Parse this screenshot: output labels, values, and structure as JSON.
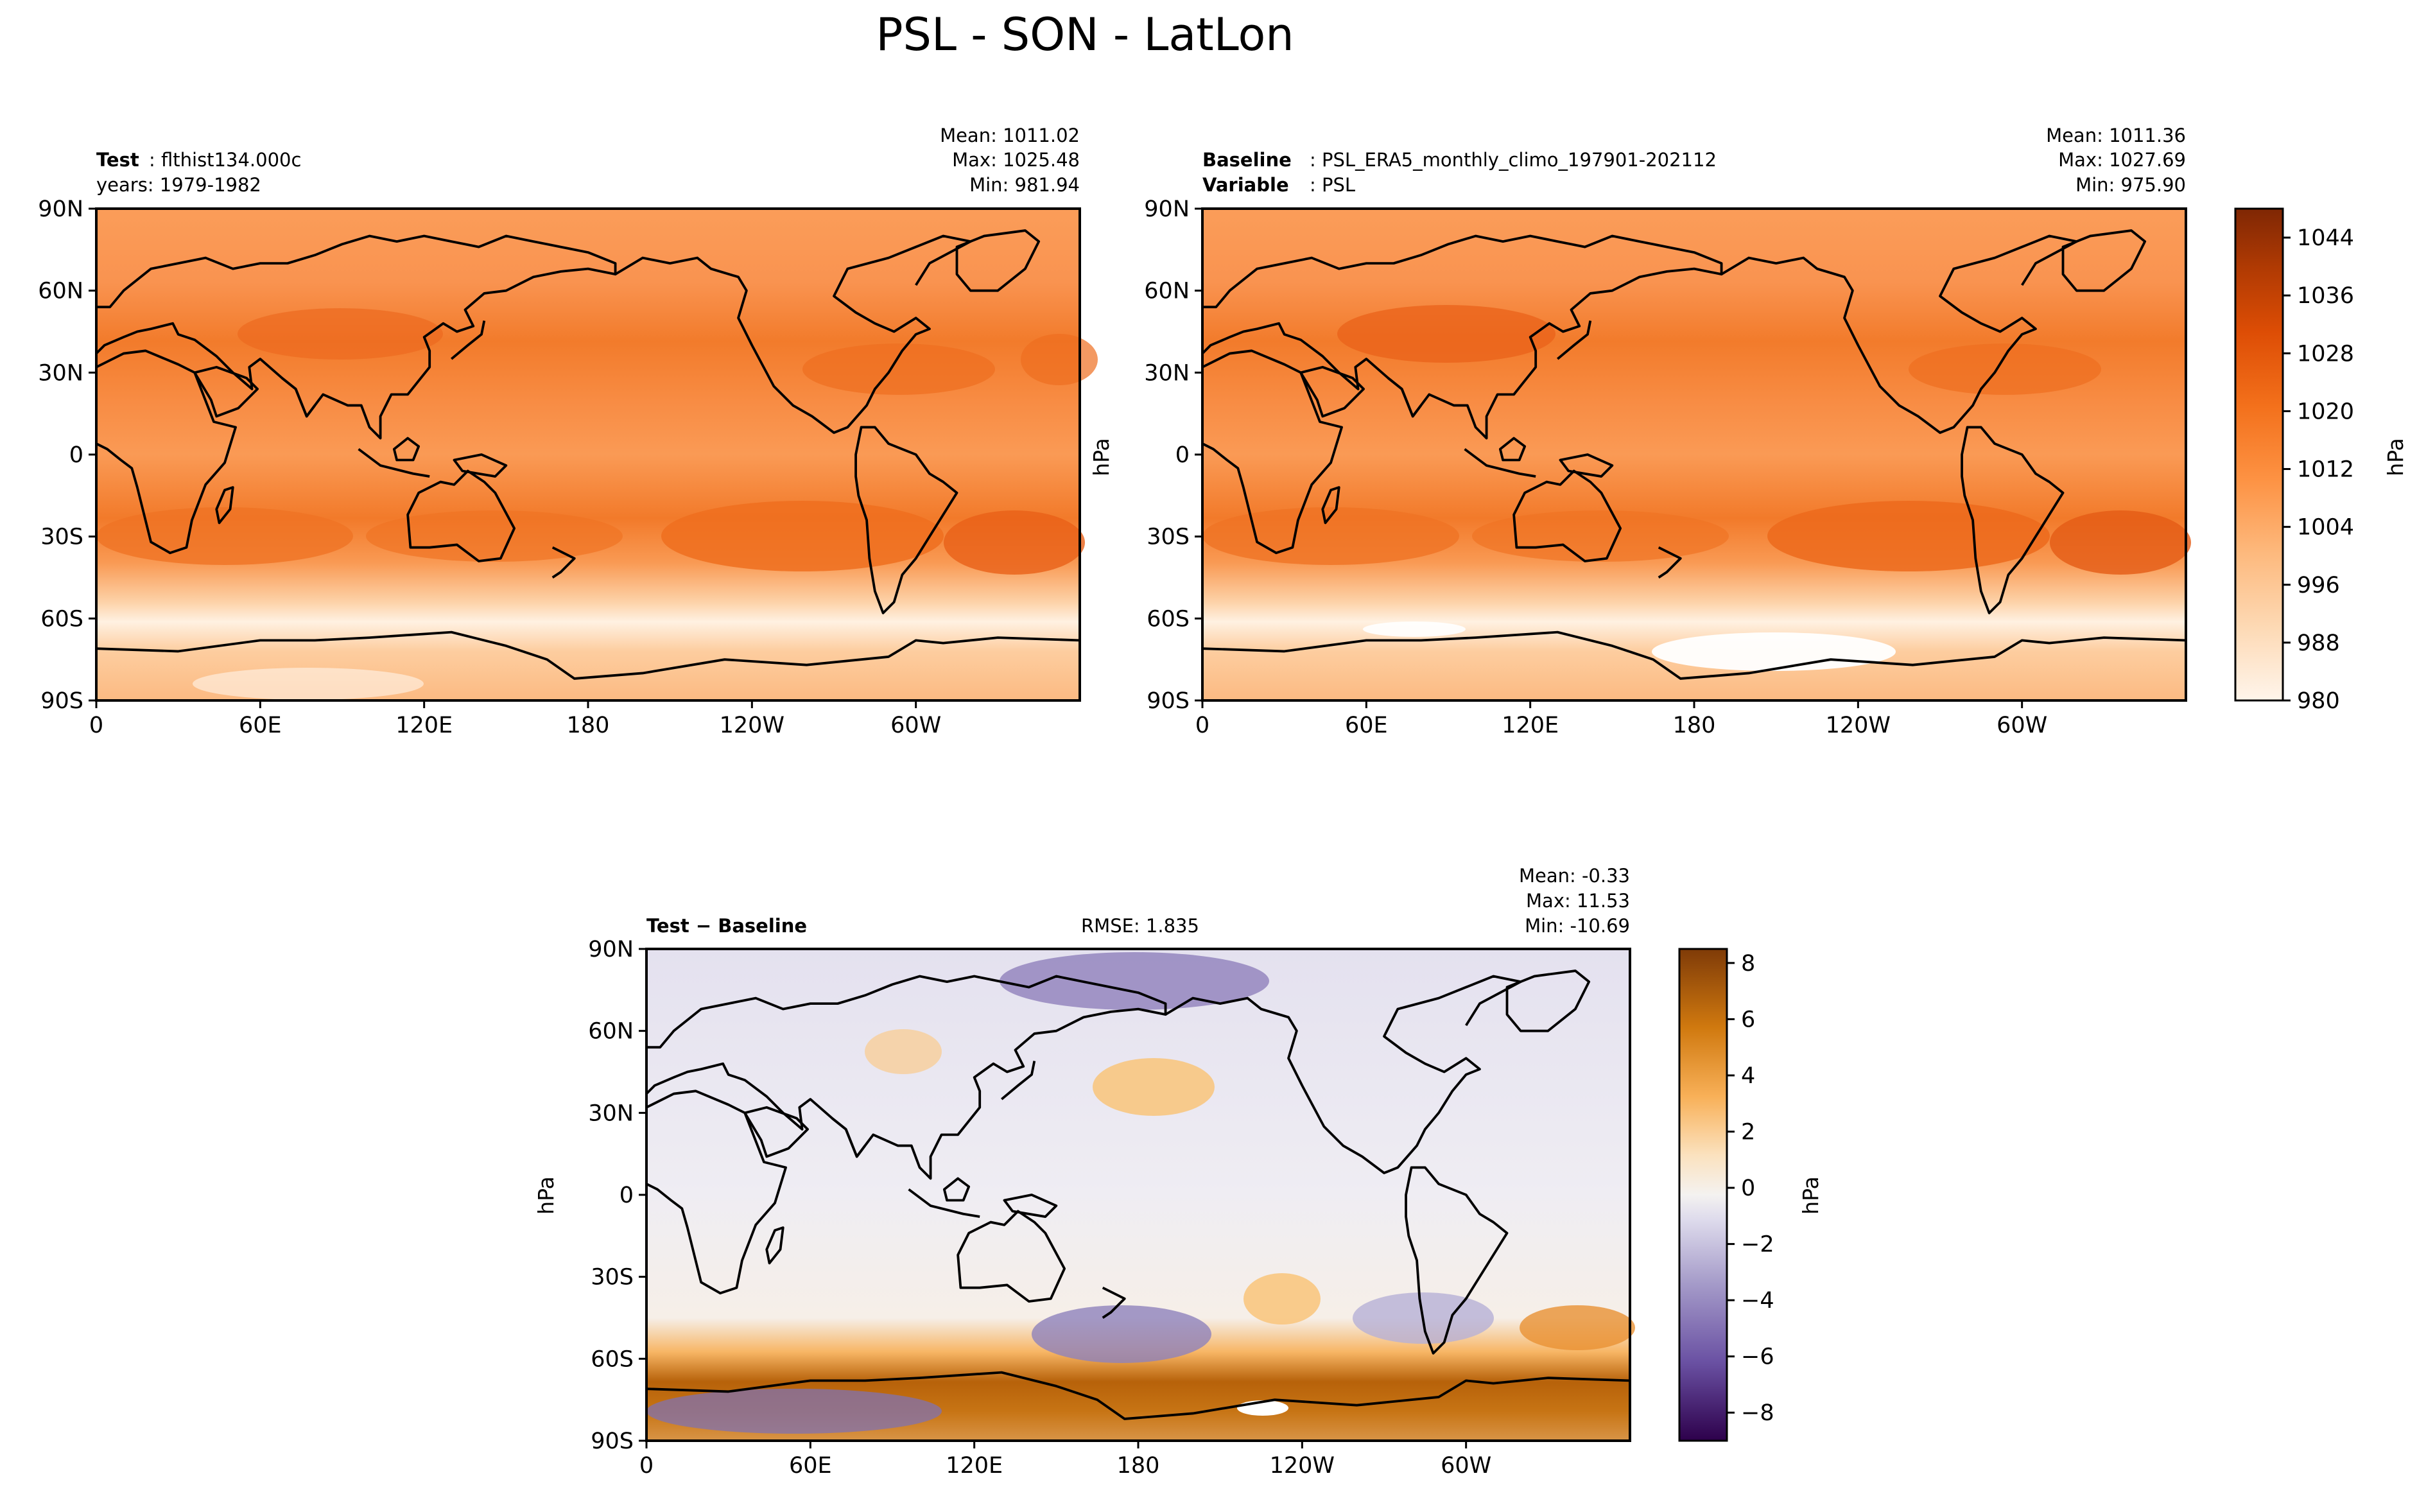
{
  "figure": {
    "title": "PSL - SON - LatLon"
  },
  "chart_data": [
    {
      "type": "heatmap",
      "panel": "test",
      "title_bold": "Test",
      "title_rest": ": flthist134.000c",
      "subtitle": "years: 1979-1982",
      "stats": {
        "mean": "Mean: 1011.02",
        "max": "Max: 1025.48",
        "min": "Min: 981.94"
      },
      "xticks": [
        "0",
        "60E",
        "120E",
        "180",
        "120W",
        "60W"
      ],
      "xtick_values": [
        0,
        60,
        120,
        180,
        240,
        300
      ],
      "yticks": [
        "90N",
        "60N",
        "30N",
        "0",
        "30S",
        "60S",
        "90S"
      ],
      "ytick_values": [
        90,
        60,
        30,
        0,
        -30,
        -60,
        -90
      ],
      "xlim": [
        0,
        360
      ],
      "ylim": [
        -90,
        90
      ],
      "units": "hPa",
      "colormap": "Oranges",
      "range": [
        980,
        1048
      ]
    },
    {
      "type": "heatmap",
      "panel": "baseline",
      "title_bold": "Baseline",
      "title_rest": ": PSL_ERA5_monthly_climo_197901-202112",
      "subtitle_bold": "Variable",
      "subtitle_rest": ": PSL",
      "stats": {
        "mean": "Mean: 1011.36",
        "max": "Max: 1027.69",
        "min": "Min: 975.90"
      },
      "xticks": [
        "0",
        "60E",
        "120E",
        "180",
        "120W",
        "60W"
      ],
      "xtick_values": [
        0,
        60,
        120,
        180,
        240,
        300
      ],
      "yticks": [
        "90N",
        "60N",
        "30N",
        "0",
        "30S",
        "60S",
        "90S"
      ],
      "ytick_values": [
        90,
        60,
        30,
        0,
        -30,
        -60,
        -90
      ],
      "xlim": [
        0,
        360
      ],
      "ylim": [
        -90,
        90
      ],
      "ylabel": "hPa",
      "units": "hPa",
      "colormap": "Oranges",
      "range": [
        980,
        1048
      ],
      "colorbar": {
        "label": "hPa",
        "ticks": [
          "980",
          "988",
          "996",
          "1004",
          "1012",
          "1020",
          "1028",
          "1036",
          "1044"
        ],
        "tick_values": [
          980,
          988,
          996,
          1004,
          1012,
          1020,
          1028,
          1036,
          1044
        ],
        "range": [
          980,
          1048
        ]
      }
    },
    {
      "type": "heatmap",
      "panel": "difference",
      "title_bold": "Test − Baseline",
      "rmse": "RMSE: 1.835",
      "stats": {
        "mean": "Mean: -0.33",
        "max": "Max: 11.53",
        "min": "Min: -10.69"
      },
      "xticks": [
        "0",
        "60E",
        "120E",
        "180",
        "120W",
        "60W"
      ],
      "xtick_values": [
        0,
        60,
        120,
        180,
        240,
        300
      ],
      "yticks": [
        "90N",
        "60N",
        "30N",
        "0",
        "30S",
        "60S",
        "90S"
      ],
      "ytick_values": [
        90,
        60,
        30,
        0,
        -30,
        -60,
        -90
      ],
      "xlim": [
        0,
        360
      ],
      "ylim": [
        -90,
        90
      ],
      "ylabel": "hPa",
      "units": "hPa",
      "colormap": "PuOr_r",
      "range": [
        -9,
        8.5
      ],
      "colorbar": {
        "label": "hPa",
        "ticks": [
          "−8",
          "−6",
          "−4",
          "−2",
          "0",
          "2",
          "4",
          "6",
          "8"
        ],
        "tick_values": [
          -8,
          -6,
          -4,
          -2,
          0,
          2,
          4,
          6,
          8
        ],
        "range": [
          -9,
          8.5
        ]
      }
    }
  ]
}
